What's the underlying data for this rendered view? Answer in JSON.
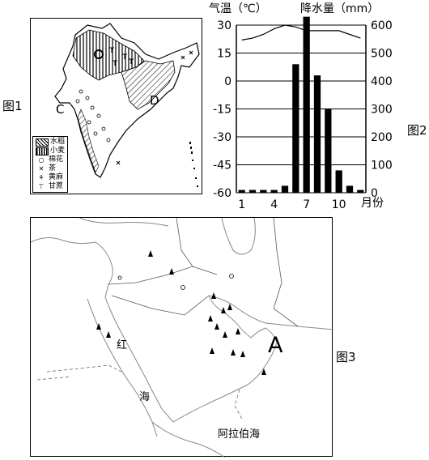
{
  "figure1": {
    "label": "图1",
    "region_labels": {
      "c": "C",
      "d": "D"
    },
    "legend": [
      {
        "label": "水稻",
        "icon": "hatch-diagonal-icon"
      },
      {
        "label": "小麦",
        "icon": "hatch-vertical-icon"
      },
      {
        "label": "棉花",
        "icon": "circle-symbol-icon"
      },
      {
        "label": "茶",
        "icon": "cross-symbol-icon"
      },
      {
        "label": "黄麻",
        "icon": "jute-symbol-icon"
      },
      {
        "label": "甘蔗",
        "icon": "sugarcane-symbol-icon"
      }
    ]
  },
  "figure2": {
    "label": "图2",
    "chart_data": {
      "type": "bar",
      "left_axis_label": "气温（℃）",
      "right_axis_label": "降水量（mm）",
      "x_axis_unit": "月份",
      "x_tick_labels": [
        "1",
        "4",
        "7",
        "10"
      ],
      "x_tick_months": [
        1,
        4,
        7,
        10
      ],
      "left_ticks": [
        "30",
        "15",
        "0",
        "-15",
        "-30",
        "-45",
        "-60"
      ],
      "left_range": [
        -60,
        30
      ],
      "right_ticks": [
        "600",
        "500",
        "400",
        "300",
        "200",
        "100",
        "0"
      ],
      "right_range": [
        0,
        600
      ],
      "months": [
        1,
        2,
        3,
        4,
        5,
        6,
        7,
        8,
        9,
        10,
        11,
        12
      ],
      "precipitation_mm": [
        10,
        10,
        10,
        10,
        25,
        460,
        630,
        420,
        300,
        80,
        25,
        10
      ],
      "temperature_c": [
        22,
        23,
        25,
        28,
        30,
        29,
        27,
        27,
        27,
        27,
        25,
        23
      ]
    }
  },
  "figure3": {
    "label": "图3",
    "place_labels": {
      "red_sea_1": "红",
      "red_sea_2": "海",
      "arabian_sea": "阿拉伯海",
      "point_a": "A"
    }
  }
}
